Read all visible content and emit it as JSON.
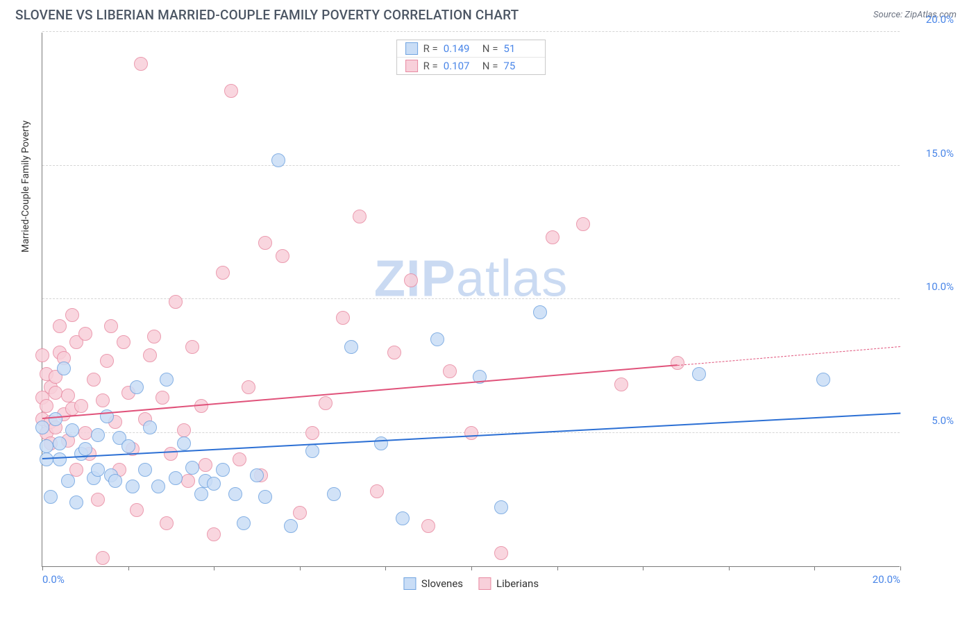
{
  "title": "SLOVENE VS LIBERIAN MARRIED-COUPLE FAMILY POVERTY CORRELATION CHART",
  "source_label": "Source: ZipAtlas.com",
  "watermark": {
    "bold": "ZIP",
    "light": "atlas",
    "color": "#9fbde8"
  },
  "ylabel": "Married-Couple Family Poverty",
  "chart": {
    "type": "scatter",
    "background_color": "#ffffff",
    "grid_color": "#d5d5d5",
    "axis_color": "#7a7a7a",
    "xlim": [
      0,
      20
    ],
    "ylim": [
      0,
      20
    ],
    "x_ticks": [
      0,
      2,
      4,
      6,
      8,
      10,
      12,
      14,
      16,
      18,
      20
    ],
    "x_tick_labels": {
      "0": "0.0%",
      "20": "20.0%"
    },
    "y_ticks": [
      5,
      10,
      15,
      20
    ],
    "y_tick_labels": {
      "5": "5.0%",
      "10": "10.0%",
      "15": "15.0%",
      "20": "20.0%"
    },
    "tick_label_color": "#4a86e8",
    "tick_label_fontsize": 15,
    "marker_radius": 10,
    "marker_stroke_width": 1.2,
    "series": [
      {
        "name": "Slovenes",
        "fill": "#c9ddf6",
        "stroke": "#6fa3e0",
        "line_color": "#2b6fd4",
        "R": "0.149",
        "N": "51",
        "trend": {
          "x1": 0,
          "y1": 4.0,
          "x2": 20,
          "y2": 5.7,
          "solid_until_x": 20
        },
        "points": [
          [
            0.0,
            5.2
          ],
          [
            0.1,
            4.5
          ],
          [
            0.1,
            4.0
          ],
          [
            0.2,
            2.6
          ],
          [
            0.3,
            5.5
          ],
          [
            0.4,
            4.6
          ],
          [
            0.4,
            4.0
          ],
          [
            0.5,
            7.4
          ],
          [
            0.6,
            3.2
          ],
          [
            0.7,
            5.1
          ],
          [
            0.8,
            2.4
          ],
          [
            0.9,
            4.2
          ],
          [
            1.0,
            4.4
          ],
          [
            1.2,
            3.3
          ],
          [
            1.3,
            4.9
          ],
          [
            1.3,
            3.6
          ],
          [
            1.5,
            5.6
          ],
          [
            1.6,
            3.4
          ],
          [
            1.7,
            3.2
          ],
          [
            1.8,
            4.8
          ],
          [
            2.0,
            4.5
          ],
          [
            2.1,
            3.0
          ],
          [
            2.2,
            6.7
          ],
          [
            2.4,
            3.6
          ],
          [
            2.5,
            5.2
          ],
          [
            2.7,
            3.0
          ],
          [
            2.9,
            7.0
          ],
          [
            3.1,
            3.3
          ],
          [
            3.3,
            4.6
          ],
          [
            3.5,
            3.7
          ],
          [
            3.7,
            2.7
          ],
          [
            3.8,
            3.2
          ],
          [
            4.0,
            3.1
          ],
          [
            4.2,
            3.6
          ],
          [
            4.5,
            2.7
          ],
          [
            4.7,
            1.6
          ],
          [
            5.0,
            3.4
          ],
          [
            5.2,
            2.6
          ],
          [
            5.5,
            15.2
          ],
          [
            5.8,
            1.5
          ],
          [
            6.3,
            4.3
          ],
          [
            6.8,
            2.7
          ],
          [
            7.2,
            8.2
          ],
          [
            7.9,
            4.6
          ],
          [
            8.4,
            1.8
          ],
          [
            9.2,
            8.5
          ],
          [
            10.2,
            7.1
          ],
          [
            10.7,
            2.2
          ],
          [
            11.6,
            9.5
          ],
          [
            15.3,
            7.2
          ],
          [
            18.2,
            7.0
          ]
        ]
      },
      {
        "name": "Liberians",
        "fill": "#f8d0da",
        "stroke": "#e88aa2",
        "line_color": "#e0527a",
        "R": "0.107",
        "N": "75",
        "trend": {
          "x1": 0,
          "y1": 5.5,
          "x2": 20,
          "y2": 8.2,
          "solid_until_x": 14.8
        },
        "points": [
          [
            0.0,
            5.5
          ],
          [
            0.0,
            6.3
          ],
          [
            0.0,
            7.9
          ],
          [
            0.1,
            5.0
          ],
          [
            0.1,
            6.0
          ],
          [
            0.1,
            7.2
          ],
          [
            0.2,
            5.4
          ],
          [
            0.2,
            6.7
          ],
          [
            0.2,
            4.6
          ],
          [
            0.3,
            6.5
          ],
          [
            0.3,
            7.1
          ],
          [
            0.3,
            5.2
          ],
          [
            0.4,
            8.0
          ],
          [
            0.4,
            9.0
          ],
          [
            0.5,
            5.7
          ],
          [
            0.5,
            7.8
          ],
          [
            0.6,
            4.7
          ],
          [
            0.6,
            6.4
          ],
          [
            0.7,
            5.9
          ],
          [
            0.7,
            9.4
          ],
          [
            0.8,
            8.4
          ],
          [
            0.8,
            3.6
          ],
          [
            0.9,
            6.0
          ],
          [
            1.0,
            5.0
          ],
          [
            1.0,
            8.7
          ],
          [
            1.1,
            4.2
          ],
          [
            1.2,
            7.0
          ],
          [
            1.3,
            2.5
          ],
          [
            1.4,
            6.2
          ],
          [
            1.4,
            0.3
          ],
          [
            1.5,
            7.7
          ],
          [
            1.6,
            9.0
          ],
          [
            1.7,
            5.4
          ],
          [
            1.8,
            3.6
          ],
          [
            1.9,
            8.4
          ],
          [
            2.0,
            6.5
          ],
          [
            2.1,
            4.4
          ],
          [
            2.2,
            2.1
          ],
          [
            2.3,
            18.8
          ],
          [
            2.4,
            5.5
          ],
          [
            2.5,
            7.9
          ],
          [
            2.6,
            8.6
          ],
          [
            2.8,
            6.3
          ],
          [
            2.9,
            1.6
          ],
          [
            3.0,
            4.2
          ],
          [
            3.1,
            9.9
          ],
          [
            3.3,
            5.1
          ],
          [
            3.4,
            3.2
          ],
          [
            3.5,
            8.2
          ],
          [
            3.7,
            6.0
          ],
          [
            3.8,
            3.8
          ],
          [
            4.0,
            1.2
          ],
          [
            4.2,
            11.0
          ],
          [
            4.4,
            17.8
          ],
          [
            4.6,
            4.0
          ],
          [
            4.8,
            6.7
          ],
          [
            5.1,
            3.4
          ],
          [
            5.2,
            12.1
          ],
          [
            5.6,
            11.6
          ],
          [
            6.0,
            2.0
          ],
          [
            6.3,
            5.0
          ],
          [
            6.6,
            6.1
          ],
          [
            7.0,
            9.3
          ],
          [
            7.4,
            13.1
          ],
          [
            7.8,
            2.8
          ],
          [
            8.2,
            8.0
          ],
          [
            8.6,
            10.7
          ],
          [
            9.0,
            1.5
          ],
          [
            9.5,
            7.3
          ],
          [
            10.0,
            5.0
          ],
          [
            10.7,
            0.5
          ],
          [
            11.9,
            12.3
          ],
          [
            12.6,
            12.8
          ],
          [
            13.5,
            6.8
          ],
          [
            14.8,
            7.6
          ]
        ]
      }
    ],
    "r_legend_border": "#c8c8c8"
  },
  "bottom_legend": [
    {
      "label": "Slovenes",
      "fill": "#c9ddf6",
      "stroke": "#6fa3e0"
    },
    {
      "label": "Liberians",
      "fill": "#f8d0da",
      "stroke": "#e88aa2"
    }
  ]
}
